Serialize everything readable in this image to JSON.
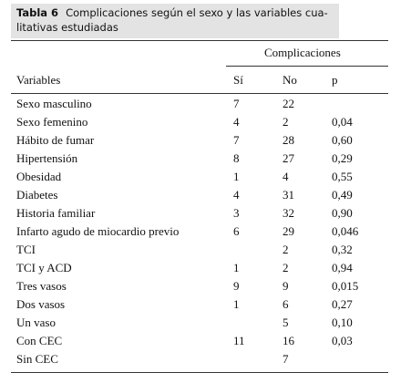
{
  "caption": {
    "label": "Tabla 6",
    "text": "Complicaciones según el sexo y las variables cua-",
    "text2": "litativas estudiadas"
  },
  "table": {
    "group_header": "Complicaciones",
    "headers": [
      "Variables",
      "Sí",
      "No",
      "p"
    ],
    "rows": [
      [
        "Sexo masculino",
        "7",
        "22",
        ""
      ],
      [
        "Sexo femenino",
        "4",
        "2",
        "0,04"
      ],
      [
        "Hábito de fumar",
        "7",
        "28",
        "0,60"
      ],
      [
        "Hipertensión",
        "8",
        "27",
        "0,29"
      ],
      [
        "Obesidad",
        "1",
        "4",
        "0,55"
      ],
      [
        "Diabetes",
        "4",
        "31",
        "0,49"
      ],
      [
        "Historia familiar",
        "3",
        "32",
        "0,90"
      ],
      [
        "Infarto agudo de miocardio previo",
        "6",
        "29",
        "0,046"
      ],
      [
        "TCI",
        "",
        "2",
        "0,32"
      ],
      [
        "TCI y ACD",
        "1",
        "2",
        "0,94"
      ],
      [
        "Tres vasos",
        "9",
        "9",
        "0,015"
      ],
      [
        "Dos vasos",
        "1",
        "6",
        "0,27"
      ],
      [
        "Un vaso",
        "",
        "5",
        "0,10"
      ],
      [
        "Con CEC",
        "11",
        "16",
        "0,03"
      ],
      [
        "Sin CEC",
        "",
        "7",
        ""
      ]
    ]
  }
}
